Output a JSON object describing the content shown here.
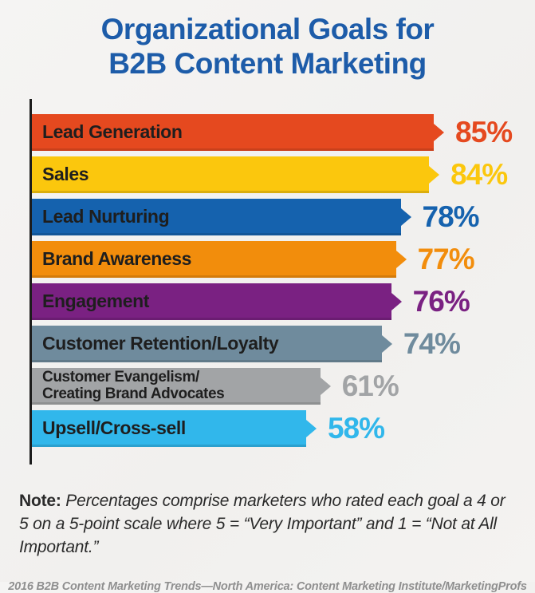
{
  "title": "Organizational Goals for\nB2B Content Marketing",
  "note": {
    "label": "Note:",
    "text": " Percentages comprise marketers who rated each goal a 4 or 5 on a 5-point scale where 5 = “Very Important” and 1 = “Not at All Important.”"
  },
  "source": "2016 B2B Content Marketing Trends—North America: Content Marketing Institute/MarketingProfs",
  "theme": {
    "title_color": "#1d5ca9",
    "axis_color": "#1c1c1c",
    "background": "#f3f2f0"
  },
  "chart_data": {
    "type": "bar",
    "orientation": "horizontal",
    "title": "Organizational Goals for B2B Content Marketing",
    "categories": [
      "Lead Generation",
      "Sales",
      "Lead Nurturing",
      "Brand Awareness",
      "Engagement",
      "Customer Retention/Loyalty",
      "Customer Evangelism/\nCreating Brand Advocates",
      "Upsell/Cross-sell"
    ],
    "values": [
      85,
      84,
      78,
      77,
      76,
      74,
      61,
      58
    ],
    "unit": "%",
    "colors": [
      "#e5491f",
      "#fbc70d",
      "#1562ae",
      "#f28d0c",
      "#7a2182",
      "#6f8b9d",
      "#a2a4a6",
      "#31b7eb"
    ],
    "xlim": [
      0,
      100
    ],
    "grid": false,
    "legend": false,
    "value_label_position": "right-of-bar",
    "value_label_color": "matches-bar"
  }
}
